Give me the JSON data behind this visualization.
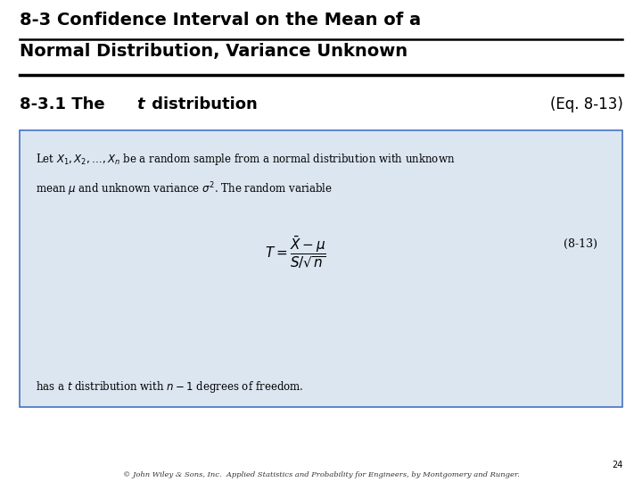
{
  "title_line1": "8-3 Confidence Interval on the Mean of a",
  "title_line2": "Normal Distribution, Variance Unknown",
  "eq_ref": "(Eq. 8-13)",
  "box_text_line1": "Let $X_1, X_2, \\ldots, X_n$ be a random sample from a normal distribution with unknown",
  "box_text_line2": "mean $\\mu$ and unknown variance $\\sigma^2$. The random variable",
  "formula": "$T = \\dfrac{\\bar{X} - \\mu}{S/\\sqrt{n}}$",
  "eq_number": "(8-13)",
  "box_text_line3": "has a $t$ distribution with $n - 1$ degrees of freedom.",
  "page_number": "24",
  "footer": "© John Wiley & Sons, Inc.  Applied Statistics and Probability for Engineers, by Montgomery and Runger.",
  "background_color": "#ffffff",
  "box_bg_color": "#dce6f1",
  "box_border_color": "#4472c4",
  "title_color": "#000000",
  "text_color": "#000000",
  "title_fontsize": 14,
  "section_fontsize": 13,
  "body_fontsize": 8.5,
  "formula_fontsize": 11,
  "eq_num_fontsize": 9,
  "footer_fontsize": 6,
  "page_num_fontsize": 7
}
